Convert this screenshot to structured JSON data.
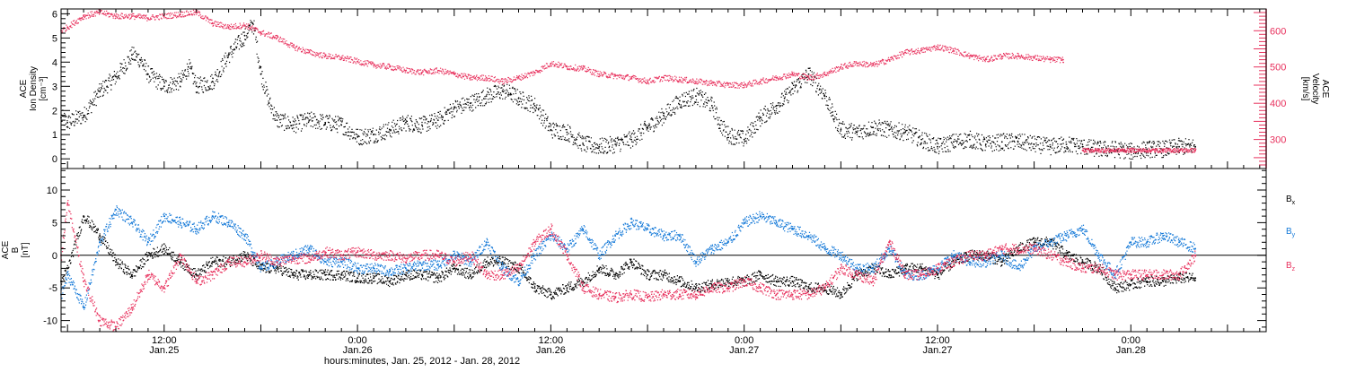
{
  "xlabel": "hours:minutes, Jan. 25, 2012 - Jan. 28, 2012",
  "x_ticks": [
    {
      "t": 12,
      "time": "12:00",
      "date": "Jan.25"
    },
    {
      "t": 24,
      "time": "0:00",
      "date": "Jan.26"
    },
    {
      "t": 36,
      "time": "12:00",
      "date": "Jan.26"
    },
    {
      "t": 48,
      "time": "0:00",
      "date": "Jan.27"
    },
    {
      "t": 60,
      "time": "12:00",
      "date": "Jan.27"
    },
    {
      "t": 72,
      "time": "0:00",
      "date": "Jan.28"
    }
  ],
  "colors": {
    "black": "#000000",
    "pink": "#e8325e",
    "blue": "#1479d8"
  },
  "chart_data": [
    {
      "type": "scatter",
      "x_unit": "hours since 2012-01-25 00:00",
      "xlim": [
        5.6,
        80.4
      ],
      "left_axis": {
        "label_lines": [
          "ACE",
          "Ion Density",
          "[cm⁻³]"
        ],
        "ylim": [
          -0.4,
          6.2
        ],
        "ticks": [
          "0",
          "1",
          "2",
          "3",
          "4",
          "5",
          "6"
        ]
      },
      "right_axis": {
        "label_lines": [
          "ACE",
          "Velocity",
          "[km/s]"
        ],
        "ylim": [
          220,
          660
        ],
        "ticks": [
          "300",
          "400",
          "500",
          "600"
        ]
      },
      "series": [
        {
          "name": "",
          "axis": "left",
          "color": "#000000",
          "x": [
            5.6,
            6,
            7,
            8,
            9,
            10,
            10.5,
            11,
            12,
            13,
            13.5,
            14,
            15,
            16,
            17,
            17.5,
            18,
            18.5,
            19,
            20,
            21,
            22,
            23,
            24,
            25,
            26,
            27,
            28,
            29,
            30,
            31,
            32,
            33,
            33.5,
            34,
            35,
            36,
            37,
            38,
            39,
            40,
            41,
            42,
            43,
            44,
            45,
            46,
            46.5,
            47,
            48,
            49,
            50,
            50.5,
            51,
            52,
            53,
            53.5,
            54,
            55,
            56,
            57,
            58,
            59,
            60,
            61,
            62,
            63,
            64,
            65,
            66,
            67,
            68,
            69,
            70,
            71,
            72,
            73,
            74,
            75,
            76
          ],
          "y": [
            1.7,
            1.5,
            1.8,
            2.8,
            3.4,
            4.3,
            4.1,
            3.5,
            3,
            3.2,
            3.8,
            3,
            3.2,
            4.3,
            5.1,
            5.6,
            3.5,
            2.3,
            1.6,
            1.4,
            1.6,
            1.5,
            1.4,
            0.9,
            1,
            1.2,
            1.5,
            1.4,
            1.6,
            2.1,
            2.3,
            2.6,
            2.8,
            2.7,
            2.5,
            2.2,
            1.2,
            1.1,
            0.6,
            0.5,
            0.6,
            0.8,
            1.3,
            1.8,
            2.4,
            2.6,
            2.2,
            1.4,
            1,
            0.8,
            1.7,
            2.2,
            2.5,
            2.9,
            3.5,
            2.6,
            1.8,
            1.2,
            1.1,
            1.3,
            1.2,
            1.1,
            0.8,
            0.5,
            0.7,
            0.8,
            0.6,
            0.7,
            0.7,
            0.6,
            0.5,
            0.6,
            0.5,
            0.4,
            0.4,
            0.3,
            0.4,
            0.4,
            0.5,
            0.5
          ]
        },
        {
          "name": "",
          "axis": "right",
          "color": "#e8325e",
          "x": [
            5.6,
            6,
            7,
            8,
            9,
            10,
            11,
            12,
            13,
            14,
            15,
            16,
            17,
            18,
            19,
            20,
            21,
            22,
            23,
            24,
            25,
            26,
            27,
            28,
            29,
            30,
            31,
            32,
            33,
            34,
            35,
            36,
            37,
            38,
            39,
            40,
            41,
            42,
            43,
            44,
            45,
            46,
            47,
            48,
            49,
            50,
            51,
            52,
            53,
            54,
            55,
            56,
            57,
            58,
            59,
            60,
            61,
            62,
            63,
            64,
            65,
            66,
            67,
            67.8,
            69,
            70,
            71,
            72,
            73,
            74,
            75,
            76
          ],
          "y": [
            600,
            610,
            640,
            650,
            640,
            640,
            635,
            640,
            645,
            650,
            620,
            610,
            615,
            595,
            580,
            555,
            540,
            530,
            525,
            515,
            505,
            500,
            490,
            485,
            490,
            480,
            470,
            470,
            460,
            470,
            485,
            510,
            500,
            495,
            480,
            475,
            470,
            460,
            470,
            465,
            460,
            455,
            450,
            450,
            460,
            470,
            480,
            470,
            480,
            500,
            510,
            505,
            520,
            540,
            545,
            555,
            545,
            530,
            520,
            530,
            530,
            525,
            520,
            520,
            270,
            270,
            270,
            270,
            270,
            270,
            270,
            270
          ]
        }
      ]
    },
    {
      "type": "scatter",
      "x_unit": "hours since 2012-01-25 00:00",
      "xlim": [
        5.6,
        80.4
      ],
      "ylabel_lines": [
        "ACE",
        "B",
        "[nT]"
      ],
      "ylim": [
        -11.7,
        13.3
      ],
      "y_ticks": [
        "-10",
        "-5",
        "0",
        "5",
        "10"
      ],
      "zero_line": true,
      "legend_placement": "right",
      "series": [
        {
          "name": "B",
          "subscript": "x",
          "color": "#000000",
          "x": [
            5.6,
            6,
            7,
            8,
            9,
            10,
            11,
            12,
            13,
            14,
            15,
            16,
            17,
            18,
            19,
            20,
            21,
            22,
            23,
            24,
            25,
            26,
            27,
            28,
            29,
            30,
            31,
            32,
            33,
            34,
            35,
            36,
            37,
            38,
            39,
            40,
            41,
            42,
            43,
            44,
            45,
            46,
            47,
            48,
            49,
            50,
            51,
            52,
            53,
            54,
            55,
            56,
            57,
            58,
            59,
            60,
            61,
            62,
            63,
            64,
            65,
            66,
            67,
            68,
            69,
            70,
            71,
            72,
            73,
            74,
            75,
            76
          ],
          "y": [
            -4,
            -2,
            6,
            3,
            -1,
            -3,
            0,
            1,
            -1,
            -3,
            -1,
            -1,
            0,
            -2,
            -2,
            -3,
            -3,
            -3,
            -3,
            -3.5,
            -3.5,
            -4,
            -3,
            -3,
            -3.5,
            -2,
            -3,
            -1,
            -1,
            -2,
            -5,
            -6,
            -5,
            -4,
            -2,
            -3,
            -1,
            -3,
            -3,
            -4,
            -5,
            -4.5,
            -4,
            -4,
            -3,
            -4,
            -4,
            -5,
            -5,
            -6,
            -3,
            -2,
            -3,
            -2,
            -2,
            -3,
            -1,
            0,
            0,
            -1,
            1,
            2,
            2,
            0,
            -1,
            -2,
            -5,
            -4.5,
            -4,
            -4,
            -3.5,
            -3.5
          ]
        },
        {
          "name": "B",
          "subscript": "y",
          "color": "#1479d8",
          "x": [
            5.6,
            6,
            7,
            8,
            9,
            10,
            11,
            12,
            13,
            14,
            15,
            16,
            17,
            18,
            19,
            20,
            21,
            22,
            23,
            24,
            25,
            26,
            27,
            28,
            29,
            30,
            31,
            32,
            33,
            34,
            35,
            36,
            37,
            38,
            39,
            40,
            41,
            42,
            43,
            44,
            45,
            46,
            47,
            48,
            49,
            50,
            51,
            52,
            53,
            54,
            55,
            56,
            57,
            58,
            59,
            60,
            61,
            62,
            63,
            64,
            65,
            66,
            67,
            68,
            69,
            70,
            71,
            72,
            73,
            74,
            75,
            76
          ],
          "y": [
            -6,
            -3,
            -8,
            2,
            7,
            5,
            2,
            6,
            5,
            4,
            6,
            5,
            3,
            -2,
            -1,
            0,
            1,
            -1,
            -1,
            -2,
            -2,
            -2.5,
            -2,
            -1.5,
            -1.5,
            0,
            -1,
            2,
            -2,
            -4,
            0,
            3,
            1,
            4,
            0,
            3,
            5,
            4,
            3,
            3,
            -1,
            1,
            2,
            5,
            6,
            5,
            4,
            3,
            1,
            0,
            -2,
            -2,
            1,
            -3,
            -3,
            -2,
            0,
            -1,
            -1,
            0,
            -2,
            1,
            2,
            3,
            4,
            0,
            -3,
            2,
            2,
            3,
            2,
            1
          ]
        },
        {
          "name": "B",
          "subscript": "z",
          "color": "#e8325e",
          "x": [
            5.6,
            6,
            7,
            8,
            9,
            10,
            11,
            12,
            13,
            14,
            15,
            16,
            17,
            18,
            19,
            20,
            21,
            22,
            23,
            24,
            25,
            26,
            27,
            28,
            29,
            30,
            31,
            32,
            33,
            34,
            35,
            36,
            37,
            38,
            39,
            40,
            41,
            42,
            43,
            44,
            45,
            46,
            47,
            48,
            49,
            50,
            51,
            52,
            53,
            54,
            55,
            56,
            57,
            58,
            59,
            60,
            61,
            62,
            63,
            64,
            65,
            66,
            67,
            68,
            69,
            70,
            71,
            72,
            73,
            74,
            75,
            76
          ],
          "y": [
            0,
            8,
            -4,
            -10,
            -11,
            -8,
            -3,
            -5,
            0,
            -4,
            -3,
            -1,
            -1,
            0,
            -1,
            -0.5,
            -0.5,
            0.5,
            0,
            0.5,
            0,
            0,
            -0.5,
            0,
            0,
            -1,
            0,
            -3,
            -3,
            -2,
            2,
            4,
            0,
            -5,
            -6,
            -6.5,
            -6,
            -6.5,
            -6,
            -6,
            -6,
            -5,
            -5,
            -4,
            -5,
            -6,
            -6,
            -6,
            -5,
            -2,
            -3,
            -4,
            2,
            -3,
            -3,
            -2,
            -1,
            0,
            0,
            1,
            1,
            1,
            0,
            -1,
            -2,
            -2,
            -3,
            -3,
            -3,
            -3,
            -3,
            0
          ]
        }
      ]
    }
  ]
}
